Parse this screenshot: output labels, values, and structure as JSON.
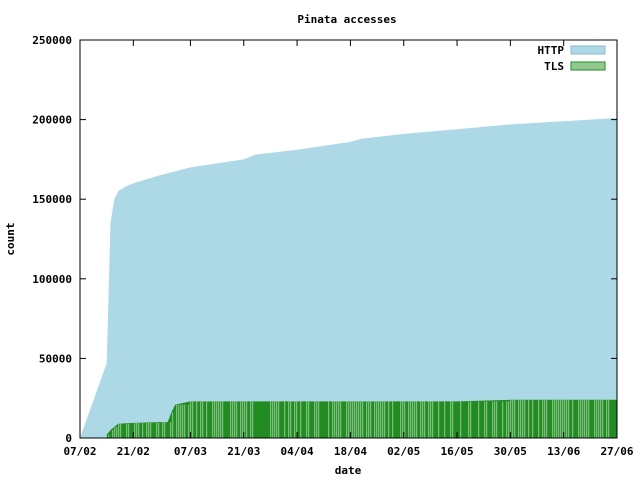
{
  "chart_data": {
    "type": "area",
    "title": "Pinata accesses",
    "xlabel": "date",
    "ylabel": "count",
    "x_range": [
      "07/02",
      "27/06"
    ],
    "x_ticks": [
      "07/02",
      "21/02",
      "07/03",
      "21/03",
      "04/04",
      "18/04",
      "02/05",
      "16/05",
      "30/05",
      "13/06",
      "27/06"
    ],
    "ylim": [
      0,
      250000
    ],
    "y_ticks": [
      0,
      50000,
      100000,
      150000,
      200000,
      250000
    ],
    "legend_position": "top-right",
    "grid": false,
    "series": [
      {
        "name": "HTTP",
        "color": "#add8e6",
        "points": [
          [
            "07/02",
            0
          ],
          [
            "14/02",
            47000
          ],
          [
            "15/02",
            135000
          ],
          [
            "16/02",
            150000
          ],
          [
            "17/02",
            155000
          ],
          [
            "19/02",
            158000
          ],
          [
            "21/02",
            160000
          ],
          [
            "28/02",
            165000
          ],
          [
            "07/03",
            170000
          ],
          [
            "21/03",
            175000
          ],
          [
            "24/03",
            178000
          ],
          [
            "04/04",
            181000
          ],
          [
            "18/04",
            186000
          ],
          [
            "21/04",
            188000
          ],
          [
            "02/05",
            191000
          ],
          [
            "16/05",
            194000
          ],
          [
            "30/05",
            197000
          ],
          [
            "13/06",
            199000
          ],
          [
            "27/06",
            201000
          ]
        ]
      },
      {
        "name": "TLS",
        "color": "#228b22",
        "fill_color": "#90c890",
        "points": [
          [
            "14/02",
            2000
          ],
          [
            "15/02",
            5000
          ],
          [
            "16/02",
            7000
          ],
          [
            "17/02",
            9000
          ],
          [
            "21/02",
            9500
          ],
          [
            "28/02",
            10000
          ],
          [
            "01/03",
            10000
          ],
          [
            "02/03",
            16000
          ],
          [
            "03/03",
            21000
          ],
          [
            "07/03",
            23000
          ],
          [
            "21/03",
            23000
          ],
          [
            "04/04",
            23000
          ],
          [
            "18/04",
            23000
          ],
          [
            "02/05",
            23000
          ],
          [
            "16/05",
            23000
          ],
          [
            "30/05",
            24000
          ],
          [
            "13/06",
            24000
          ],
          [
            "27/06",
            24000
          ]
        ]
      }
    ]
  }
}
